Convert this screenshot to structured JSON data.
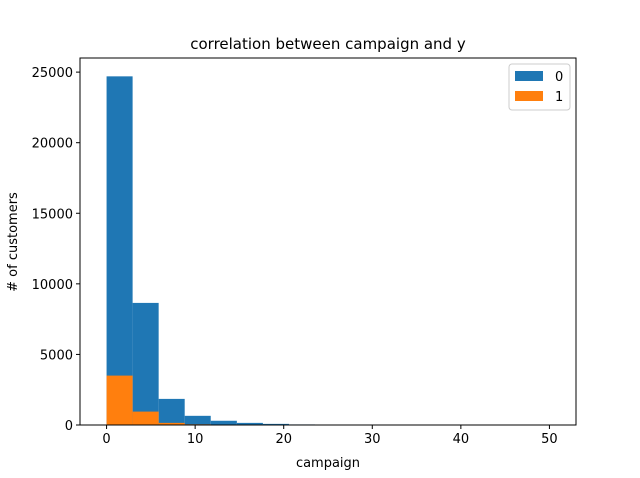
{
  "chart_data": {
    "type": "bar",
    "title": "correlation between campaign and y",
    "xlabel": "campaign",
    "ylabel": "# of customers",
    "xlim": [
      -3,
      53
    ],
    "ylim": [
      0,
      26000
    ],
    "x_ticks": [
      0,
      10,
      20,
      30,
      40,
      50
    ],
    "y_ticks": [
      0,
      5000,
      10000,
      15000,
      20000,
      25000
    ],
    "bin_edges": [
      0,
      2.94,
      5.88,
      8.82,
      11.76,
      14.71,
      17.65,
      20.59,
      23.53,
      26.47,
      29.41,
      32.35,
      35.29,
      38.24,
      41.18,
      44.12,
      47.06,
      50,
      52.94
    ],
    "series": [
      {
        "name": "0",
        "color": "#1f77b4",
        "values": [
          24700,
          8650,
          1850,
          650,
          300,
          150,
          80,
          40,
          25,
          15,
          10,
          5,
          4,
          3,
          2,
          1,
          1,
          1
        ]
      },
      {
        "name": "1",
        "color": "#ff7f0e",
        "values": [
          3500,
          950,
          150,
          50,
          20,
          8,
          3,
          1,
          1,
          0,
          0,
          0,
          0,
          0,
          0,
          0,
          0,
          0
        ]
      }
    ],
    "legend": {
      "position": "top-right",
      "entries": [
        "0",
        "1"
      ]
    },
    "grid": false
  }
}
